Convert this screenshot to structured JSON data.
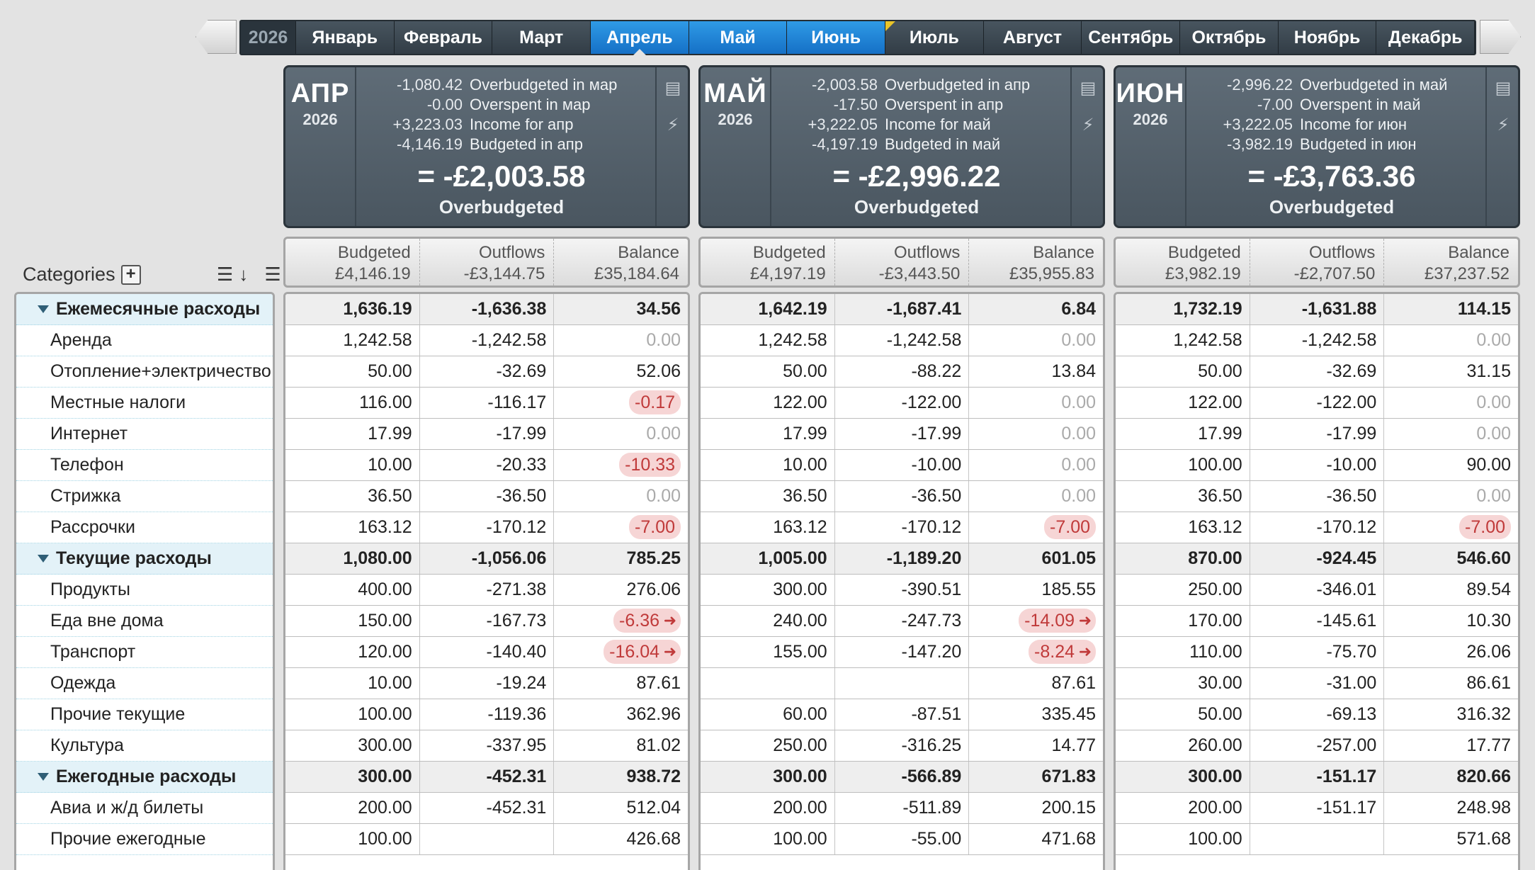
{
  "month_bar": {
    "year": "2026",
    "months": [
      "Январь",
      "Февраль",
      "Март",
      "Апрель",
      "Май",
      "Июнь",
      "Июль",
      "Август",
      "Сентябрь",
      "Октябрь",
      "Ноябрь",
      "Декабрь"
    ]
  },
  "categories_panel": {
    "title": "Categories",
    "add_label": "+",
    "sort_icons": "☰↓ ☰↑"
  },
  "cards": [
    {
      "month": "АПР",
      "year": "2026",
      "lines": [
        {
          "num": "-1,080.42",
          "label": "Overbudgeted in мар"
        },
        {
          "num": "-0.00",
          "label": "Overspent in мар"
        },
        {
          "num": "+3,223.03",
          "label": "Income for апр"
        },
        {
          "num": "-4,146.19",
          "label": "Budgeted in апр"
        }
      ],
      "total": "= -£2,003.58",
      "total_label": "Overbudgeted",
      "col_budgeted": "£4,146.19",
      "col_outflows": "-£3,144.75",
      "col_balance": "£35,184.64"
    },
    {
      "month": "МАЙ",
      "year": "2026",
      "lines": [
        {
          "num": "-2,003.58",
          "label": "Overbudgeted in апр"
        },
        {
          "num": "-17.50",
          "label": "Overspent in апр"
        },
        {
          "num": "+3,222.05",
          "label": "Income for май"
        },
        {
          "num": "-4,197.19",
          "label": "Budgeted in май"
        }
      ],
      "total": "= -£2,996.22",
      "total_label": "Overbudgeted",
      "col_budgeted": "£4,197.19",
      "col_outflows": "-£3,443.50",
      "col_balance": "£35,955.83"
    },
    {
      "month": "ИЮН",
      "year": "2026",
      "lines": [
        {
          "num": "-2,996.22",
          "label": "Overbudgeted in май"
        },
        {
          "num": "-7.00",
          "label": "Overspent in май"
        },
        {
          "num": "+3,222.05",
          "label": "Income for июн"
        },
        {
          "num": "-3,982.19",
          "label": "Budgeted in июн"
        }
      ],
      "total": "= -£3,763.36",
      "total_label": "Overbudgeted",
      "col_budgeted": "£3,982.19",
      "col_outflows": "-£2,707.50",
      "col_balance": "£37,237.52"
    }
  ],
  "column_headers": {
    "budgeted": "Budgeted",
    "outflows": "Outflows",
    "balance": "Balance"
  },
  "rows": [
    {
      "name": "Ежемесячные расходы",
      "group": true,
      "m": [
        [
          "1,636.19",
          "-1,636.38",
          "34.56",
          ""
        ],
        [
          "1,642.19",
          "-1,687.41",
          "6.84",
          ""
        ],
        [
          "1,732.19",
          "-1,631.88",
          "114.15",
          ""
        ]
      ]
    },
    {
      "name": "Аренда",
      "m": [
        [
          "1,242.58",
          "-1,242.58",
          "0.00",
          "zero"
        ],
        [
          "1,242.58",
          "-1,242.58",
          "0.00",
          "zero"
        ],
        [
          "1,242.58",
          "-1,242.58",
          "0.00",
          "zero"
        ]
      ]
    },
    {
      "name": "Отопление+электричество",
      "m": [
        [
          "50.00",
          "-32.69",
          "52.06",
          ""
        ],
        [
          "50.00",
          "-88.22",
          "13.84",
          ""
        ],
        [
          "50.00",
          "-32.69",
          "31.15",
          ""
        ]
      ]
    },
    {
      "name": "Местные налоги",
      "m": [
        [
          "116.00",
          "-116.17",
          "-0.17",
          "neg"
        ],
        [
          "122.00",
          "-122.00",
          "0.00",
          "zero"
        ],
        [
          "122.00",
          "-122.00",
          "0.00",
          "zero"
        ]
      ]
    },
    {
      "name": "Интернет",
      "m": [
        [
          "17.99",
          "-17.99",
          "0.00",
          "zero"
        ],
        [
          "17.99",
          "-17.99",
          "0.00",
          "zero"
        ],
        [
          "17.99",
          "-17.99",
          "0.00",
          "zero"
        ]
      ]
    },
    {
      "name": "Телефон",
      "m": [
        [
          "10.00",
          "-20.33",
          "-10.33",
          "neg"
        ],
        [
          "10.00",
          "-10.00",
          "0.00",
          "zero"
        ],
        [
          "100.00",
          "-10.00",
          "90.00",
          ""
        ]
      ]
    },
    {
      "name": "Стрижка",
      "m": [
        [
          "36.50",
          "-36.50",
          "0.00",
          "zero"
        ],
        [
          "36.50",
          "-36.50",
          "0.00",
          "zero"
        ],
        [
          "36.50",
          "-36.50",
          "0.00",
          "zero"
        ]
      ]
    },
    {
      "name": "Рассрочки",
      "m": [
        [
          "163.12",
          "-170.12",
          "-7.00",
          "neg"
        ],
        [
          "163.12",
          "-170.12",
          "-7.00",
          "neg"
        ],
        [
          "163.12",
          "-170.12",
          "-7.00",
          "neg"
        ]
      ]
    },
    {
      "name": "Текущие расходы",
      "group": true,
      "m": [
        [
          "1,080.00",
          "-1,056.06",
          "785.25",
          ""
        ],
        [
          "1,005.00",
          "-1,189.20",
          "601.05",
          ""
        ],
        [
          "870.00",
          "-924.45",
          "546.60",
          ""
        ]
      ]
    },
    {
      "name": "Продукты",
      "m": [
        [
          "400.00",
          "-271.38",
          "276.06",
          ""
        ],
        [
          "300.00",
          "-390.51",
          "185.55",
          ""
        ],
        [
          "250.00",
          "-346.01",
          "89.54",
          ""
        ]
      ]
    },
    {
      "name": "Еда вне дома",
      "m": [
        [
          "150.00",
          "-167.73",
          "-6.36",
          "negarrow"
        ],
        [
          "240.00",
          "-247.73",
          "-14.09",
          "negarrow"
        ],
        [
          "170.00",
          "-145.61",
          "10.30",
          ""
        ]
      ]
    },
    {
      "name": "Транспорт",
      "m": [
        [
          "120.00",
          "-140.40",
          "-16.04",
          "negarrow"
        ],
        [
          "155.00",
          "-147.20",
          "-8.24",
          "negarrow"
        ],
        [
          "110.00",
          "-75.70",
          "26.06",
          ""
        ]
      ]
    },
    {
      "name": "Одежда",
      "m": [
        [
          "10.00",
          "-19.24",
          "87.61",
          ""
        ],
        [
          "",
          "",
          "87.61",
          ""
        ],
        [
          "30.00",
          "-31.00",
          "86.61",
          ""
        ]
      ]
    },
    {
      "name": "Прочие текущие",
      "m": [
        [
          "100.00",
          "-119.36",
          "362.96",
          ""
        ],
        [
          "60.00",
          "-87.51",
          "335.45",
          ""
        ],
        [
          "50.00",
          "-69.13",
          "316.32",
          ""
        ]
      ]
    },
    {
      "name": "Культура",
      "m": [
        [
          "300.00",
          "-337.95",
          "81.02",
          ""
        ],
        [
          "250.00",
          "-316.25",
          "14.77",
          ""
        ],
        [
          "260.00",
          "-257.00",
          "17.77",
          ""
        ]
      ]
    },
    {
      "name": "Ежегодные расходы",
      "group": true,
      "m": [
        [
          "300.00",
          "-452.31",
          "938.72",
          ""
        ],
        [
          "300.00",
          "-566.89",
          "671.83",
          ""
        ],
        [
          "300.00",
          "-151.17",
          "820.66",
          ""
        ]
      ]
    },
    {
      "name": "Авиа и ж/д билеты",
      "m": [
        [
          "200.00",
          "-452.31",
          "512.04",
          ""
        ],
        [
          "200.00",
          "-511.89",
          "200.15",
          ""
        ],
        [
          "200.00",
          "-151.17",
          "248.98",
          ""
        ]
      ]
    },
    {
      "name": "Прочие ежегодные",
      "m": [
        [
          "100.00",
          "",
          "426.68",
          ""
        ],
        [
          "100.00",
          "-55.00",
          "471.68",
          ""
        ],
        [
          "100.00",
          "",
          "571.68",
          ""
        ]
      ]
    }
  ]
}
